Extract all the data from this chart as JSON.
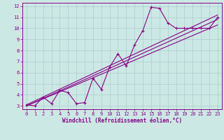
{
  "xlabel": "Windchill (Refroidissement éolien,°C)",
  "bg_color": "#cce8e4",
  "grid_color": "#aacccc",
  "line_color": "#880088",
  "spine_color": "#880088",
  "xlim": [
    -0.5,
    23.5
  ],
  "ylim": [
    2.7,
    12.3
  ],
  "xticks": [
    0,
    1,
    2,
    3,
    4,
    5,
    6,
    7,
    8,
    9,
    10,
    11,
    12,
    13,
    14,
    15,
    16,
    17,
    18,
    19,
    20,
    21,
    22,
    23
  ],
  "yticks": [
    3,
    4,
    5,
    6,
    7,
    8,
    9,
    10,
    11,
    12
  ],
  "line1_x": [
    0,
    1,
    2,
    3,
    4,
    5,
    6,
    7,
    8,
    9,
    10,
    11,
    12,
    13,
    14,
    15,
    16,
    17,
    18,
    19,
    20,
    21,
    22,
    23
  ],
  "line1_y": [
    3.1,
    3.0,
    3.8,
    3.2,
    4.4,
    4.2,
    3.2,
    3.3,
    5.5,
    4.5,
    6.5,
    7.7,
    6.6,
    8.5,
    9.8,
    11.9,
    11.8,
    10.5,
    10.0,
    10.0,
    10.0,
    10.0,
    10.0,
    11.0
  ],
  "trend1_x": [
    0,
    23
  ],
  "trend1_y": [
    3.0,
    10.3
  ],
  "trend2_x": [
    0,
    23
  ],
  "trend2_y": [
    3.0,
    10.8
  ],
  "trend3_x": [
    0,
    23
  ],
  "trend3_y": [
    3.1,
    11.2
  ],
  "xlabel_fontsize": 5.5,
  "tick_fontsize": 5.0
}
